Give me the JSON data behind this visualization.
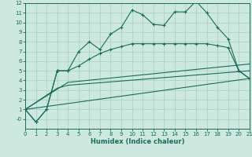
{
  "xlabel": "Humidex (Indice chaleur)",
  "bg_color": "#cde8df",
  "grid_color": "#a8cfc2",
  "line_color": "#1a6b5a",
  "xlim": [
    0,
    21
  ],
  "ylim": [
    -1,
    12
  ],
  "xticks": [
    0,
    1,
    2,
    3,
    4,
    5,
    6,
    7,
    8,
    9,
    10,
    11,
    12,
    13,
    14,
    15,
    16,
    17,
    18,
    19,
    20,
    21
  ],
  "yticks": [
    0,
    1,
    2,
    3,
    4,
    5,
    6,
    7,
    8,
    9,
    10,
    11,
    12
  ],
  "ytick_labels": [
    "-0",
    "1",
    "2",
    "3",
    "4",
    "5",
    "6",
    "7",
    "8",
    "9",
    "10",
    "11",
    "12"
  ],
  "line1_x": [
    0,
    1,
    2,
    3,
    3,
    4,
    5,
    6,
    7,
    8,
    9,
    10,
    11,
    12,
    13,
    14,
    15,
    16,
    17,
    18,
    19,
    20,
    21
  ],
  "line1_y": [
    1,
    -0.3,
    1.0,
    5.0,
    5.0,
    5.0,
    7.0,
    8.0,
    7.2,
    8.8,
    9.5,
    11.3,
    10.8,
    9.8,
    9.7,
    11.1,
    11.1,
    12.2,
    11.0,
    9.5,
    8.3,
    5.0,
    4.2
  ],
  "line2_x": [
    0,
    21
  ],
  "line2_y": [
    1.0,
    4.2
  ],
  "line3_x": [
    0,
    3,
    4,
    21
  ],
  "line3_y": [
    1.0,
    3.2,
    3.5,
    5.0
  ],
  "line4_x": [
    0,
    4,
    21
  ],
  "line4_y": [
    1.0,
    3.8,
    5.7
  ],
  "line5_x": [
    0,
    1,
    2,
    3,
    3,
    4,
    5,
    6,
    7,
    8,
    9,
    10,
    11,
    12,
    13,
    14,
    15,
    16,
    17,
    18,
    19,
    20,
    21
  ],
  "line5_y": [
    1,
    -0.3,
    1.0,
    5.0,
    5.0,
    5.0,
    5.5,
    6.2,
    6.8,
    7.2,
    7.5,
    7.8,
    7.8,
    7.8,
    7.8,
    7.8,
    7.8,
    7.8,
    7.8,
    7.6,
    7.4,
    5.0,
    4.2
  ]
}
